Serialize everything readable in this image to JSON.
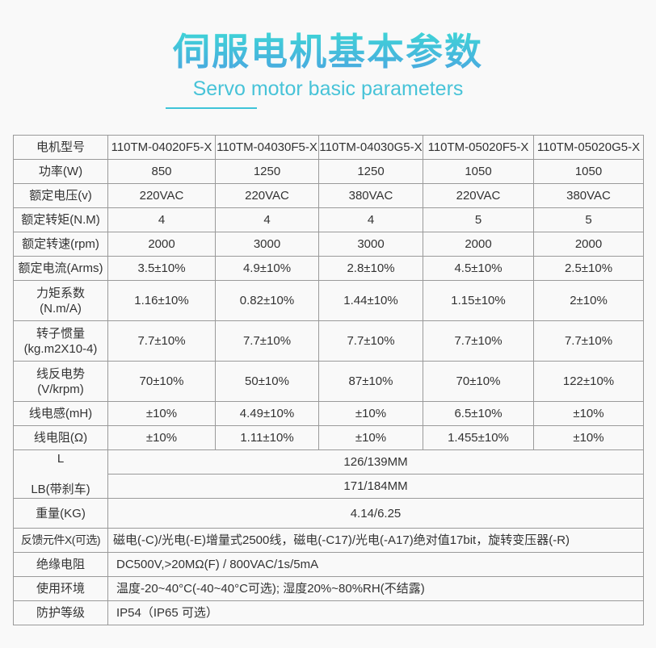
{
  "header": {
    "title": "伺服电机基本参数",
    "subtitle": "Servo motor basic parameters",
    "accent": "#3fc4d8"
  },
  "table": {
    "models_label": "电机型号",
    "models": [
      "110TM-04020F5-X",
      "110TM-04030F5-X",
      "110TM-04030G5-X",
      "110TM-05020F5-X",
      "110TM-05020G5-X"
    ],
    "rows": [
      {
        "label": "功率(W)",
        "values": [
          "850",
          "1250",
          "1250",
          "1050",
          "1050"
        ]
      },
      {
        "label": "额定电压(v)",
        "values": [
          "220VAC",
          "220VAC",
          "380VAC",
          "220VAC",
          "380VAC"
        ]
      },
      {
        "label": "额定转矩(N.M)",
        "values": [
          "4",
          "4",
          "4",
          "5",
          "5"
        ]
      },
      {
        "label": "额定转速(rpm)",
        "values": [
          "2000",
          "3000",
          "3000",
          "2000",
          "2000"
        ]
      },
      {
        "label": "额定电流(Arms)",
        "values": [
          "3.5±10%",
          "4.9±10%",
          "2.8±10%",
          "4.5±10%",
          "2.5±10%"
        ]
      },
      {
        "label": "力矩系数",
        "label2": "(N.m/A)",
        "values": [
          "1.16±10%",
          "0.82±10%",
          "1.44±10%",
          "1.15±10%",
          "2±10%"
        ]
      },
      {
        "label": "转子惯量",
        "label2": "(kg.m2X10-4)",
        "values": [
          "7.7±10%",
          "7.7±10%",
          "7.7±10%",
          "7.7±10%",
          "7.7±10%"
        ]
      },
      {
        "label": "线反电势",
        "label2": "(V/krpm)",
        "values": [
          "70±10%",
          "50±10%",
          "87±10%",
          "70±10%",
          "122±10%"
        ]
      },
      {
        "label": "线电感(mH)",
        "values": [
          "±10%",
          "4.49±10%",
          "±10%",
          "6.5±10%",
          "±10%"
        ]
      },
      {
        "label": "线电阻(Ω)",
        "values": [
          "±10%",
          "1.11±10%",
          "±10%",
          "1.455±10%",
          "±10%"
        ]
      }
    ],
    "length": {
      "label_l": "L",
      "label_lb": "LB(带刹车)",
      "l_value": "126/139MM",
      "lb_value": "171/184MM"
    },
    "weight": {
      "label": "重量(KG)",
      "value": "4.14/6.25"
    },
    "feedback": {
      "label": "反馈元件X(可选)",
      "value": "磁电(-C)/光电(-E)增量式2500线，磁电(-C17)/光电(-A17)绝对值17bit，旋转变压器(-R)"
    },
    "insulation": {
      "label": "绝缘电阻",
      "value": "DC500V,>20MΩ(F) / 800VAC/1s/5mA"
    },
    "environment": {
      "label": "使用环境",
      "value": "温度-20~40°C(-40~40°C可选); 湿度20%~80%RH(不结露)"
    },
    "protection": {
      "label": "防护等级",
      "value": "IP54（IP65 可选）"
    }
  }
}
